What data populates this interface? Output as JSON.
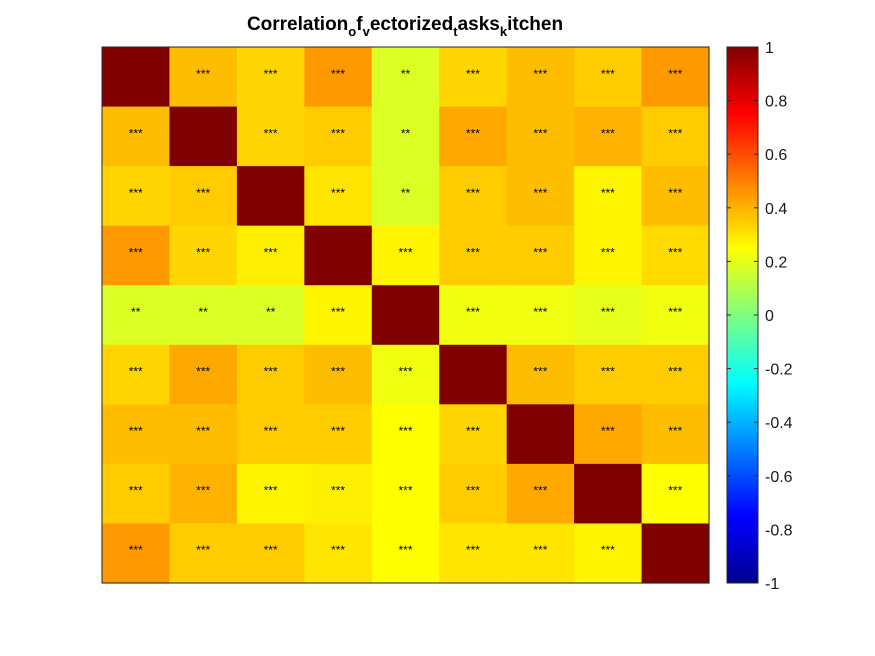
{
  "chart_data": {
    "type": "heatmap",
    "title_parts": [
      {
        "text": "Correlation",
        "sub": false
      },
      {
        "text": "o",
        "sub": true
      },
      {
        "text": "f",
        "sub": false
      },
      {
        "text": "v",
        "sub": true
      },
      {
        "text": "ectorized",
        "sub": false
      },
      {
        "text": "t",
        "sub": true
      },
      {
        "text": "asks",
        "sub": false
      },
      {
        "text": "k",
        "sub": true
      },
      {
        "text": "itchen",
        "sub": false
      }
    ],
    "colormap": "jet",
    "clim": [
      -1,
      1
    ],
    "values": [
      [
        1.0,
        0.38,
        0.33,
        0.45,
        0.18,
        0.33,
        0.38,
        0.35,
        0.45
      ],
      [
        0.38,
        1.0,
        0.33,
        0.35,
        0.18,
        0.42,
        0.38,
        0.4,
        0.35
      ],
      [
        0.33,
        0.35,
        1.0,
        0.3,
        0.18,
        0.35,
        0.38,
        0.27,
        0.38
      ],
      [
        0.45,
        0.33,
        0.28,
        1.0,
        0.27,
        0.35,
        0.35,
        0.27,
        0.32
      ],
      [
        0.18,
        0.18,
        0.18,
        0.27,
        1.0,
        0.22,
        0.22,
        0.2,
        0.22
      ],
      [
        0.33,
        0.42,
        0.35,
        0.38,
        0.22,
        1.0,
        0.38,
        0.35,
        0.35
      ],
      [
        0.38,
        0.38,
        0.35,
        0.35,
        0.25,
        0.33,
        1.0,
        0.42,
        0.38
      ],
      [
        0.35,
        0.4,
        0.27,
        0.28,
        0.25,
        0.35,
        0.42,
        1.0,
        0.25
      ],
      [
        0.45,
        0.35,
        0.35,
        0.3,
        0.25,
        0.3,
        0.3,
        0.27,
        1.0
      ]
    ],
    "cell_labels": [
      [
        "",
        "***",
        "***",
        "***",
        "**",
        "***",
        "***",
        "***",
        "***"
      ],
      [
        "***",
        "",
        "***",
        "***",
        "**",
        "***",
        "***",
        "***",
        "***"
      ],
      [
        "***",
        "***",
        "",
        "***",
        "**",
        "***",
        "***",
        "***",
        "***"
      ],
      [
        "***",
        "***",
        "***",
        "",
        "***",
        "***",
        "***",
        "***",
        "***"
      ],
      [
        "**",
        "**",
        "**",
        "***",
        "",
        "***",
        "***",
        "***",
        "***"
      ],
      [
        "***",
        "***",
        "***",
        "***",
        "***",
        "",
        "***",
        "***",
        "***"
      ],
      [
        "***",
        "***",
        "***",
        "***",
        "***",
        "***",
        "",
        "***",
        "***"
      ],
      [
        "***",
        "***",
        "***",
        "***",
        "***",
        "***",
        "***",
        "",
        "***"
      ],
      [
        "***",
        "***",
        "***",
        "***",
        "***",
        "***",
        "***",
        "***",
        ""
      ]
    ],
    "colorbar_ticks": [
      1,
      0.8,
      0.6,
      0.4,
      0.2,
      0,
      -0.2,
      -0.4,
      -0.6,
      -0.8,
      -1
    ],
    "colorbar_tick_labels": [
      "1",
      "0.8",
      "0.6",
      "0.4",
      "0.2",
      "0",
      "-0.2",
      "-0.4",
      "-0.6",
      "-0.8",
      "-1"
    ]
  }
}
